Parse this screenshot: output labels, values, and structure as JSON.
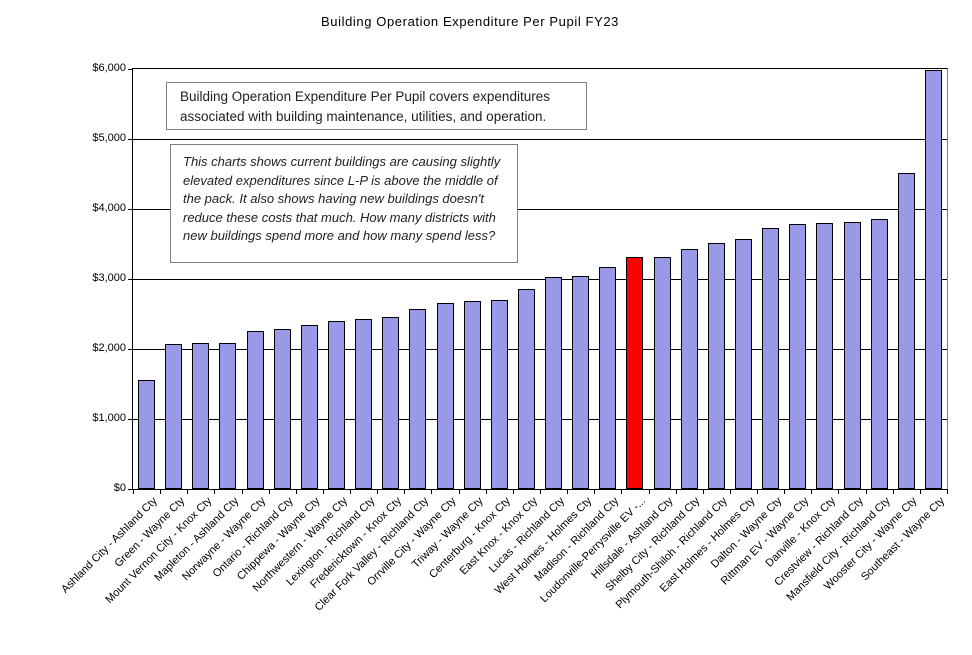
{
  "chart": {
    "annotations": {
      "definition": "Building Operation Expenditure Per Pupil covers expenditures associated with building maintenance, utilities, and operation.",
      "commentary": "This charts shows current buildings are causing slightly elevated expenditures since L-P is above the middle of the pack. It also shows having new buildings doesn't reduce these costs that much. How many districts with new buildings spend more and how many spend less?"
    }
  },
  "chart_data": {
    "type": "bar",
    "title": "Building Operation Expenditure Per Pupil FY23",
    "xlabel": "",
    "ylabel": "",
    "ylim": [
      0,
      6000
    ],
    "y_tick_step": 1000,
    "y_ticks": [
      "$0",
      "$1,000",
      "$2,000",
      "$3,000",
      "$4,000",
      "$5,000",
      "$6,000"
    ],
    "grid": "horizontal",
    "legend": "none",
    "bar_color": "#9999E8",
    "bar_border_color": "#000000",
    "highlight": {
      "index": 18,
      "category": "Loudonville-Perrysville EV -...",
      "color": "#FF0000"
    },
    "categories": [
      "Ashland City - Ashland Cty",
      "Green - Wayne Cty",
      "Mount Vernon City - Knox Cty",
      "Mapleton - Ashland Cty",
      "Norwayne - Wayne Cty",
      "Ontario - Richland Cty",
      "Chippewa - Wayne Cty",
      "Northwestern - Wayne Cty",
      "Lexington - Richland Cty",
      "Fredericktown - Knox Cty",
      "Clear Fork Valley - Richland Cty",
      "Orrville City - Wayne Cty",
      "Triway - Wayne Cty",
      "Centerburg - Knox Cty",
      "East Knox - Knox Cty",
      "Lucas - Richland Cty",
      "West Holmes - Holmes Cty",
      "Madison - Richland Cty",
      "Loudonville-Perrysville EV -...",
      "Hillsdale - Ashland Cty",
      "Shelby City - Richland Cty",
      "Plymouth-Shiloh - Richland Cty",
      "East Holmes - Holmes Cty",
      "Dalton - Wayne Cty",
      "Rittman EV - Wayne Cty",
      "Danville - Knox Cty",
      "Crestview - Richland Cty",
      "Mansfield City - Richland Cty",
      "Wooster City - Wayne Cty",
      "Southeast - Wayne Cty"
    ],
    "values": [
      1560,
      2070,
      2090,
      2090,
      2250,
      2280,
      2340,
      2400,
      2430,
      2460,
      2570,
      2660,
      2680,
      2700,
      2850,
      3030,
      3040,
      3170,
      3310,
      3320,
      3430,
      3510,
      3570,
      3730,
      3780,
      3800,
      3820,
      3850,
      4510,
      5980
    ]
  }
}
